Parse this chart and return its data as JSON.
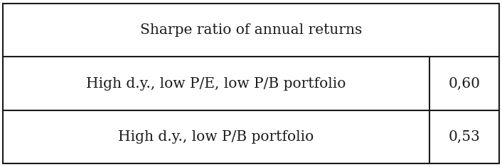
{
  "header": "Sharpe ratio of annual returns",
  "rows": [
    {
      "label": "High d.y., low P/E, low P/B portfolio",
      "value": "0,60"
    },
    {
      "label": "High d.y., low P/B portfolio",
      "value": "0,53"
    }
  ],
  "bg_color": "#ffffff",
  "text_color": "#1a1a1a",
  "border_color": "#1a1a1a",
  "font_size": 14.5,
  "header_font_size": 14.5,
  "fig_width": 7.06,
  "fig_height": 2.36,
  "dpi": 100,
  "col_split": 0.855,
  "lw": 1.5
}
